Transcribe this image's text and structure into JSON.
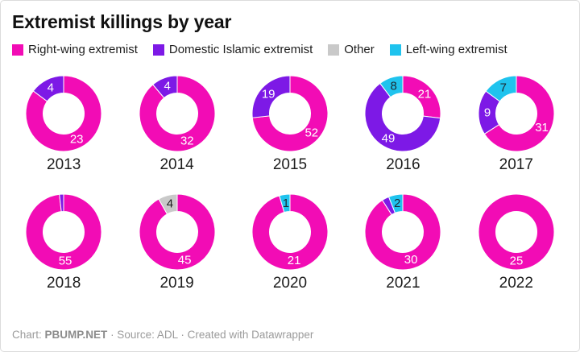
{
  "title": "Extremist killings by year",
  "legend": [
    {
      "label": "Right-wing extremist",
      "color": "#f20cb5"
    },
    {
      "label": "Domestic Islamic extremist",
      "color": "#7d19e6"
    },
    {
      "label": "Other",
      "color": "#c9c9c9"
    },
    {
      "label": "Left-wing extremist",
      "color": "#1fc3ee"
    }
  ],
  "footer": {
    "prefix": "Chart:",
    "credit": "PBUMP.NET",
    "suffix": "· Source: ADL · Created with Datawrapper"
  },
  "chart_data": {
    "type": "pie",
    "variant": "donut-small-multiples",
    "legend_position": "top",
    "start_angle_deg": 0,
    "direction": "clockwise",
    "categories": [
      "Right-wing extremist",
      "Domestic Islamic extremist",
      "Other",
      "Left-wing extremist"
    ],
    "colors": {
      "Right-wing extremist": "#f20cb5",
      "Domestic Islamic extremist": "#7d19e6",
      "Other": "#c9c9c9",
      "Left-wing extremist": "#1fc3ee"
    },
    "value_label_colors": {
      "Right-wing extremist": "#ffffff",
      "Domestic Islamic extremist": "#ffffff",
      "Other": "#1d1d1d",
      "Left-wing extremist": "#1d2a33"
    },
    "years": [
      {
        "year": "2013",
        "slices": [
          {
            "category": "Right-wing extremist",
            "value": 23,
            "show_label": true
          },
          {
            "category": "Domestic Islamic extremist",
            "value": 4,
            "show_label": true
          }
        ]
      },
      {
        "year": "2014",
        "slices": [
          {
            "category": "Right-wing extremist",
            "value": 32,
            "show_label": true
          },
          {
            "category": "Domestic Islamic extremist",
            "value": 4,
            "show_label": true
          }
        ]
      },
      {
        "year": "2015",
        "slices": [
          {
            "category": "Right-wing extremist",
            "value": 52,
            "show_label": true
          },
          {
            "category": "Domestic Islamic extremist",
            "value": 19,
            "show_label": true
          }
        ]
      },
      {
        "year": "2016",
        "slices": [
          {
            "category": "Right-wing extremist",
            "value": 21,
            "show_label": true
          },
          {
            "category": "Domestic Islamic extremist",
            "value": 49,
            "show_label": true
          },
          {
            "category": "Left-wing extremist",
            "value": 8,
            "show_label": true
          }
        ]
      },
      {
        "year": "2017",
        "slices": [
          {
            "category": "Right-wing extremist",
            "value": 31,
            "show_label": true
          },
          {
            "category": "Domestic Islamic extremist",
            "value": 9,
            "show_label": true
          },
          {
            "category": "Left-wing extremist",
            "value": 7,
            "show_label": true
          }
        ]
      },
      {
        "year": "2018",
        "slices": [
          {
            "category": "Right-wing extremist",
            "value": 55,
            "show_label": true
          },
          {
            "category": "Domestic Islamic extremist",
            "value": 1,
            "show_label": false
          }
        ]
      },
      {
        "year": "2019",
        "slices": [
          {
            "category": "Right-wing extremist",
            "value": 45,
            "show_label": true
          },
          {
            "category": "Other",
            "value": 4,
            "show_label": true
          }
        ]
      },
      {
        "year": "2020",
        "slices": [
          {
            "category": "Right-wing extremist",
            "value": 21,
            "show_label": true
          },
          {
            "category": "Left-wing extremist",
            "value": 1,
            "show_label": true
          }
        ]
      },
      {
        "year": "2021",
        "slices": [
          {
            "category": "Right-wing extremist",
            "value": 30,
            "show_label": true
          },
          {
            "category": "Domestic Islamic extremist",
            "value": 1,
            "show_label": false
          },
          {
            "category": "Left-wing extremist",
            "value": 2,
            "show_label": true
          }
        ]
      },
      {
        "year": "2022",
        "slices": [
          {
            "category": "Right-wing extremist",
            "value": 25,
            "show_label": true
          }
        ]
      }
    ]
  }
}
